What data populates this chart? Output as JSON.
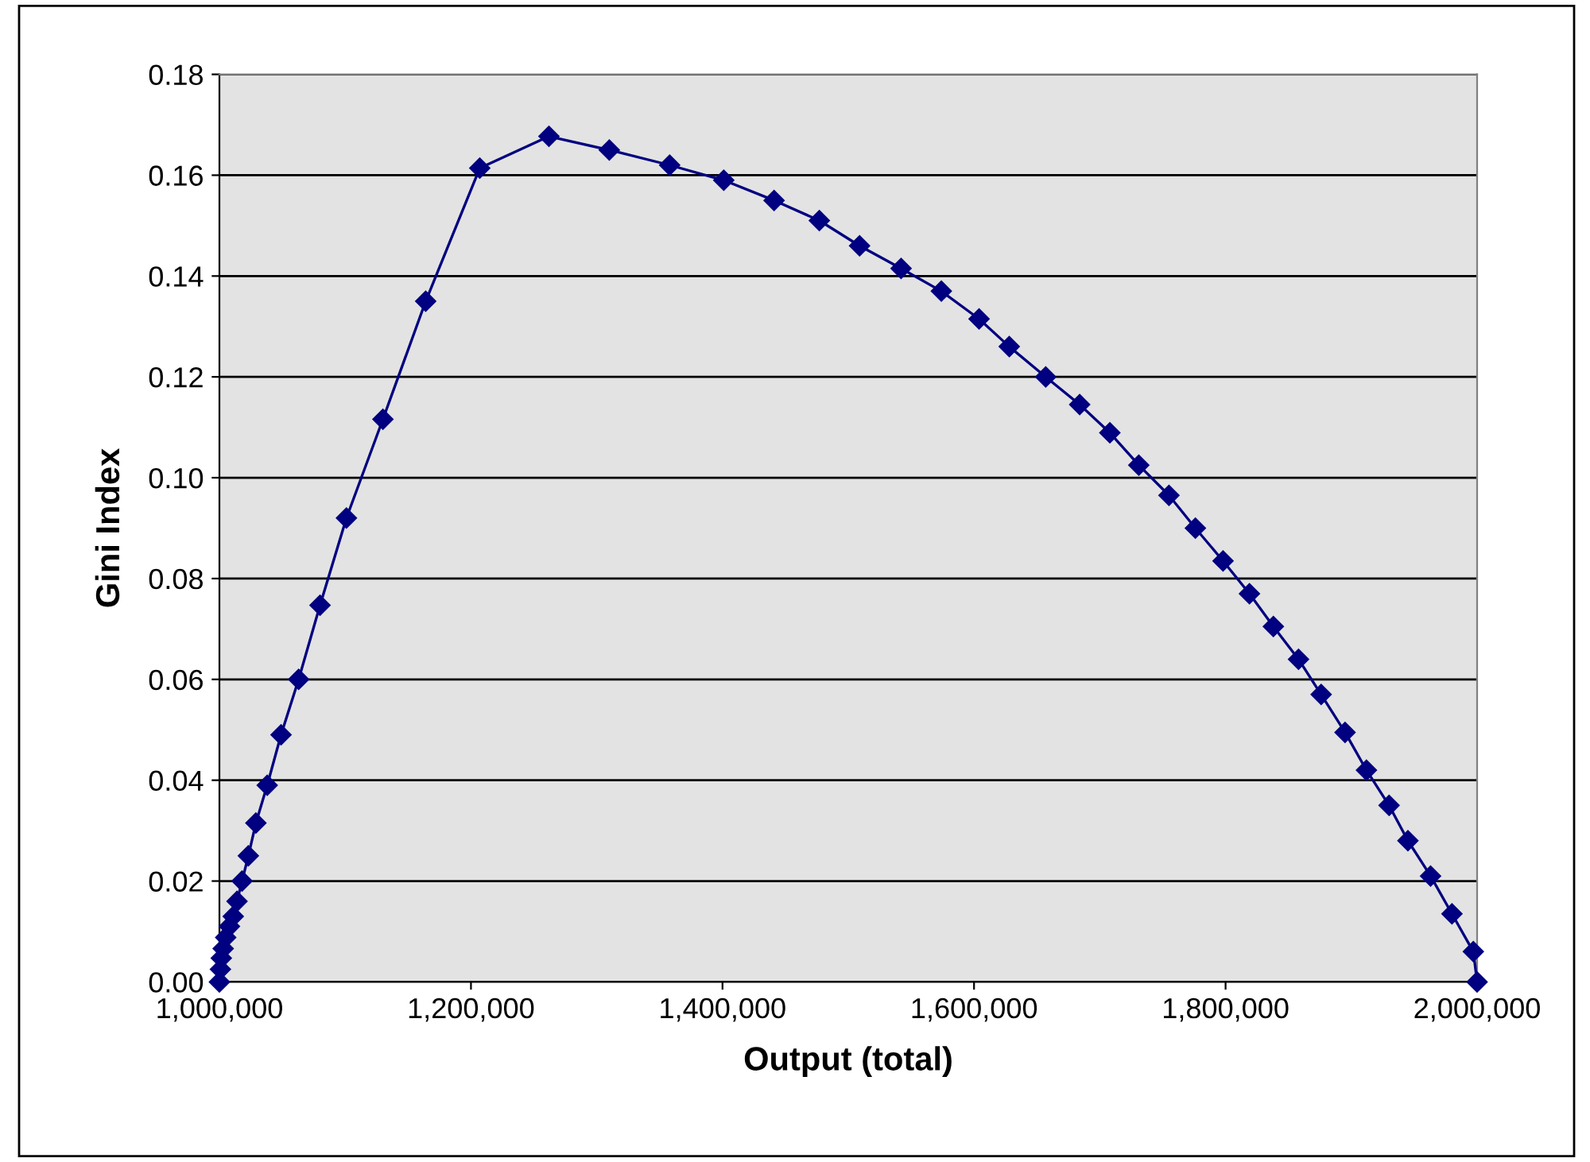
{
  "chart_data": {
    "type": "line",
    "xlabel": "Output (total)",
    "ylabel": "Gini Index",
    "marker": "diamond",
    "line_style": "solid",
    "grid": "y",
    "legend": false,
    "xlim": [
      1000000,
      2000000
    ],
    "xticks": [
      {
        "value": 1000000,
        "label": "1,000,000"
      },
      {
        "value": 1200000,
        "label": "1,200,000"
      },
      {
        "value": 1400000,
        "label": "1,400,000"
      },
      {
        "value": 1600000,
        "label": "1,600,000"
      },
      {
        "value": 1800000,
        "label": "1,800,000"
      },
      {
        "value": 2000000,
        "label": "2,000,000"
      }
    ],
    "ylim": [
      0,
      0.18
    ],
    "yticks": [
      {
        "value": 0,
        "label": "0.00"
      },
      {
        "value": 0.02,
        "label": "0.02"
      },
      {
        "value": 0.04,
        "label": "0.04"
      },
      {
        "value": 0.06,
        "label": "0.06"
      },
      {
        "value": 0.08,
        "label": "0.08"
      },
      {
        "value": 0.1,
        "label": "0.10"
      },
      {
        "value": 0.12,
        "label": "0.12"
      },
      {
        "value": 0.14,
        "label": "0.14"
      },
      {
        "value": 0.16,
        "label": "0.16"
      },
      {
        "value": 0.18,
        "label": "0.18"
      }
    ],
    "series": [
      {
        "color": "#000080",
        "x": [
          1000000,
          1000800,
          1001500,
          1003000,
          1005000,
          1008000,
          1011000,
          1014000,
          1018000,
          1023000,
          1029000,
          1038000,
          1049000,
          1063000,
          1080000,
          1101000,
          1130000,
          1164000,
          1207000,
          1262000,
          1310000,
          1358000,
          1401000,
          1441000,
          1477000,
          1509000,
          1542000,
          1574000,
          1604000,
          1628000,
          1657000,
          1684000,
          1708000,
          1731000,
          1755000,
          1776000,
          1798000,
          1819000,
          1838000,
          1858000,
          1876000,
          1895000,
          1912000,
          1930000,
          1945000,
          1963000,
          1980000,
          1997000,
          2000000
        ],
        "values": [
          0,
          0.0025,
          0.0047,
          0.0066,
          0.0088,
          0.011,
          0.013,
          0.016,
          0.02,
          0.025,
          0.0315,
          0.039,
          0.049,
          0.06,
          0.0747,
          0.092,
          0.1116,
          0.135,
          0.1614,
          0.1677,
          0.165,
          0.162,
          0.159,
          0.155,
          0.151,
          0.146,
          0.1415,
          0.137,
          0.1315,
          0.126,
          0.12,
          0.1145,
          0.1089,
          0.1025,
          0.0965,
          0.09,
          0.0835,
          0.077,
          0.0705,
          0.064,
          0.057,
          0.0495,
          0.042,
          0.035,
          0.028,
          0.021,
          0.0135,
          0.006,
          0
        ]
      }
    ]
  }
}
